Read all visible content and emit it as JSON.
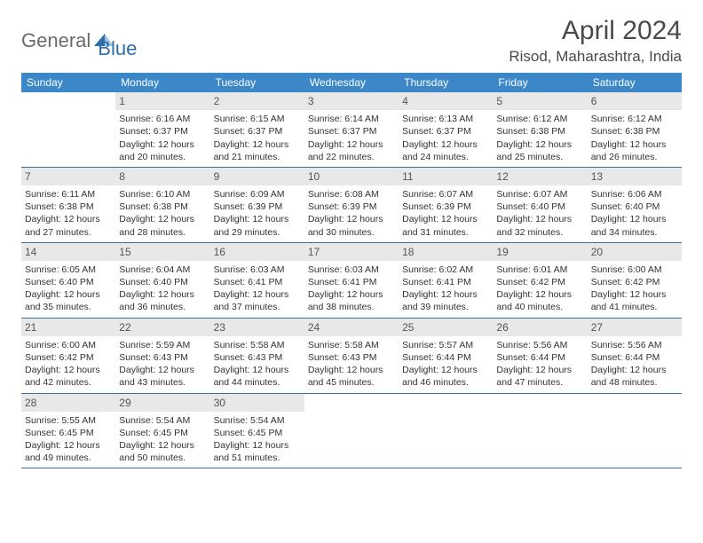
{
  "logo": {
    "part1": "General",
    "part2": "Blue"
  },
  "title": "April 2024",
  "location": "Risod, Maharashtra, India",
  "colors": {
    "header_bg": "#3b87c8",
    "header_text": "#ffffff",
    "daynum_bg": "#e8e8e8",
    "week_border": "#3b6fa0",
    "logo_gray": "#6b6b6b",
    "logo_blue": "#2f6fa8"
  },
  "weekdays": [
    "Sunday",
    "Monday",
    "Tuesday",
    "Wednesday",
    "Thursday",
    "Friday",
    "Saturday"
  ],
  "weeks": [
    [
      {
        "empty": true
      },
      {
        "num": "1",
        "sunrise": "Sunrise: 6:16 AM",
        "sunset": "Sunset: 6:37 PM",
        "day1": "Daylight: 12 hours",
        "day2": "and 20 minutes."
      },
      {
        "num": "2",
        "sunrise": "Sunrise: 6:15 AM",
        "sunset": "Sunset: 6:37 PM",
        "day1": "Daylight: 12 hours",
        "day2": "and 21 minutes."
      },
      {
        "num": "3",
        "sunrise": "Sunrise: 6:14 AM",
        "sunset": "Sunset: 6:37 PM",
        "day1": "Daylight: 12 hours",
        "day2": "and 22 minutes."
      },
      {
        "num": "4",
        "sunrise": "Sunrise: 6:13 AM",
        "sunset": "Sunset: 6:37 PM",
        "day1": "Daylight: 12 hours",
        "day2": "and 24 minutes."
      },
      {
        "num": "5",
        "sunrise": "Sunrise: 6:12 AM",
        "sunset": "Sunset: 6:38 PM",
        "day1": "Daylight: 12 hours",
        "day2": "and 25 minutes."
      },
      {
        "num": "6",
        "sunrise": "Sunrise: 6:12 AM",
        "sunset": "Sunset: 6:38 PM",
        "day1": "Daylight: 12 hours",
        "day2": "and 26 minutes."
      }
    ],
    [
      {
        "num": "7",
        "sunrise": "Sunrise: 6:11 AM",
        "sunset": "Sunset: 6:38 PM",
        "day1": "Daylight: 12 hours",
        "day2": "and 27 minutes."
      },
      {
        "num": "8",
        "sunrise": "Sunrise: 6:10 AM",
        "sunset": "Sunset: 6:38 PM",
        "day1": "Daylight: 12 hours",
        "day2": "and 28 minutes."
      },
      {
        "num": "9",
        "sunrise": "Sunrise: 6:09 AM",
        "sunset": "Sunset: 6:39 PM",
        "day1": "Daylight: 12 hours",
        "day2": "and 29 minutes."
      },
      {
        "num": "10",
        "sunrise": "Sunrise: 6:08 AM",
        "sunset": "Sunset: 6:39 PM",
        "day1": "Daylight: 12 hours",
        "day2": "and 30 minutes."
      },
      {
        "num": "11",
        "sunrise": "Sunrise: 6:07 AM",
        "sunset": "Sunset: 6:39 PM",
        "day1": "Daylight: 12 hours",
        "day2": "and 31 minutes."
      },
      {
        "num": "12",
        "sunrise": "Sunrise: 6:07 AM",
        "sunset": "Sunset: 6:40 PM",
        "day1": "Daylight: 12 hours",
        "day2": "and 32 minutes."
      },
      {
        "num": "13",
        "sunrise": "Sunrise: 6:06 AM",
        "sunset": "Sunset: 6:40 PM",
        "day1": "Daylight: 12 hours",
        "day2": "and 34 minutes."
      }
    ],
    [
      {
        "num": "14",
        "sunrise": "Sunrise: 6:05 AM",
        "sunset": "Sunset: 6:40 PM",
        "day1": "Daylight: 12 hours",
        "day2": "and 35 minutes."
      },
      {
        "num": "15",
        "sunrise": "Sunrise: 6:04 AM",
        "sunset": "Sunset: 6:40 PM",
        "day1": "Daylight: 12 hours",
        "day2": "and 36 minutes."
      },
      {
        "num": "16",
        "sunrise": "Sunrise: 6:03 AM",
        "sunset": "Sunset: 6:41 PM",
        "day1": "Daylight: 12 hours",
        "day2": "and 37 minutes."
      },
      {
        "num": "17",
        "sunrise": "Sunrise: 6:03 AM",
        "sunset": "Sunset: 6:41 PM",
        "day1": "Daylight: 12 hours",
        "day2": "and 38 minutes."
      },
      {
        "num": "18",
        "sunrise": "Sunrise: 6:02 AM",
        "sunset": "Sunset: 6:41 PM",
        "day1": "Daylight: 12 hours",
        "day2": "and 39 minutes."
      },
      {
        "num": "19",
        "sunrise": "Sunrise: 6:01 AM",
        "sunset": "Sunset: 6:42 PM",
        "day1": "Daylight: 12 hours",
        "day2": "and 40 minutes."
      },
      {
        "num": "20",
        "sunrise": "Sunrise: 6:00 AM",
        "sunset": "Sunset: 6:42 PM",
        "day1": "Daylight: 12 hours",
        "day2": "and 41 minutes."
      }
    ],
    [
      {
        "num": "21",
        "sunrise": "Sunrise: 6:00 AM",
        "sunset": "Sunset: 6:42 PM",
        "day1": "Daylight: 12 hours",
        "day2": "and 42 minutes."
      },
      {
        "num": "22",
        "sunrise": "Sunrise: 5:59 AM",
        "sunset": "Sunset: 6:43 PM",
        "day1": "Daylight: 12 hours",
        "day2": "and 43 minutes."
      },
      {
        "num": "23",
        "sunrise": "Sunrise: 5:58 AM",
        "sunset": "Sunset: 6:43 PM",
        "day1": "Daylight: 12 hours",
        "day2": "and 44 minutes."
      },
      {
        "num": "24",
        "sunrise": "Sunrise: 5:58 AM",
        "sunset": "Sunset: 6:43 PM",
        "day1": "Daylight: 12 hours",
        "day2": "and 45 minutes."
      },
      {
        "num": "25",
        "sunrise": "Sunrise: 5:57 AM",
        "sunset": "Sunset: 6:44 PM",
        "day1": "Daylight: 12 hours",
        "day2": "and 46 minutes."
      },
      {
        "num": "26",
        "sunrise": "Sunrise: 5:56 AM",
        "sunset": "Sunset: 6:44 PM",
        "day1": "Daylight: 12 hours",
        "day2": "and 47 minutes."
      },
      {
        "num": "27",
        "sunrise": "Sunrise: 5:56 AM",
        "sunset": "Sunset: 6:44 PM",
        "day1": "Daylight: 12 hours",
        "day2": "and 48 minutes."
      }
    ],
    [
      {
        "num": "28",
        "sunrise": "Sunrise: 5:55 AM",
        "sunset": "Sunset: 6:45 PM",
        "day1": "Daylight: 12 hours",
        "day2": "and 49 minutes."
      },
      {
        "num": "29",
        "sunrise": "Sunrise: 5:54 AM",
        "sunset": "Sunset: 6:45 PM",
        "day1": "Daylight: 12 hours",
        "day2": "and 50 minutes."
      },
      {
        "num": "30",
        "sunrise": "Sunrise: 5:54 AM",
        "sunset": "Sunset: 6:45 PM",
        "day1": "Daylight: 12 hours",
        "day2": "and 51 minutes."
      },
      {
        "empty": true
      },
      {
        "empty": true
      },
      {
        "empty": true
      },
      {
        "empty": true
      }
    ]
  ]
}
